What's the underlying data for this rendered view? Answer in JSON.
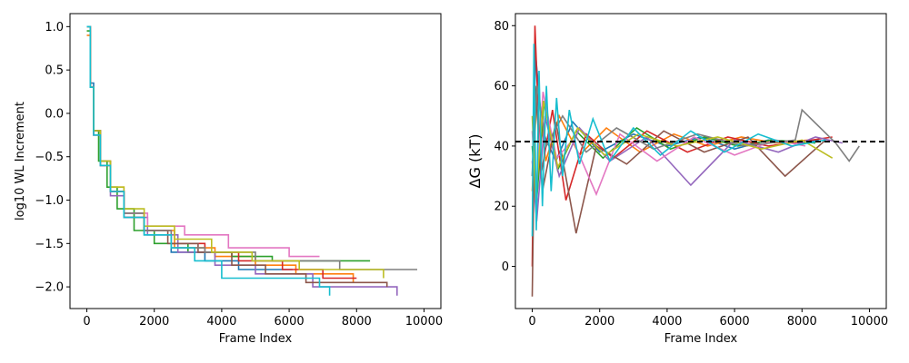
{
  "chart_data": [
    {
      "type": "line",
      "title": "",
      "xlabel": "Frame Index",
      "ylabel": "log10 WL Increment",
      "xlim": [
        -500,
        10500
      ],
      "ylim": [
        -2.25,
        1.15
      ],
      "xticks": [
        0,
        2000,
        4000,
        6000,
        8000,
        10000
      ],
      "xtick_labels": [
        "0",
        "2000",
        "4000",
        "6000",
        "8000",
        "10000"
      ],
      "yticks": [
        1.0,
        0.5,
        0.0,
        -0.5,
        -1.0,
        -1.5,
        -2.0
      ],
      "ytick_labels": [
        "1.0",
        "0.5",
        "0.0",
        "−0.5",
        "−1.0",
        "−1.5",
        "−2.0"
      ],
      "grid": false,
      "series": [
        {
          "color": "#1f77b4",
          "x": [
            0,
            100,
            200,
            400,
            700,
            1100,
            1700,
            2500,
            3500,
            4500,
            6100
          ],
          "values": [
            1.0,
            0.35,
            -0.2,
            -0.6,
            -0.9,
            -1.2,
            -1.4,
            -1.6,
            -1.7,
            -1.8,
            -1.8
          ]
        },
        {
          "color": "#ff7f0e",
          "x": [
            0,
            100,
            200,
            400,
            700,
            1100,
            1700,
            2600,
            3800,
            5000,
            6200,
            7900
          ],
          "values": [
            0.9,
            0.3,
            -0.2,
            -0.55,
            -0.85,
            -1.15,
            -1.35,
            -1.55,
            -1.65,
            -1.75,
            -1.85,
            -1.95
          ]
        },
        {
          "color": "#2ca02c",
          "x": [
            0,
            100,
            200,
            350,
            600,
            900,
            1400,
            2000,
            3000,
            4300,
            5500,
            8400
          ],
          "values": [
            0.95,
            0.3,
            -0.2,
            -0.55,
            -0.85,
            -1.1,
            -1.35,
            -1.5,
            -1.6,
            -1.65,
            -1.7,
            -1.7
          ]
        },
        {
          "color": "#d62728",
          "x": [
            0,
            100,
            200,
            400,
            700,
            1100,
            1700,
            2500,
            3500,
            4500,
            5800,
            7000,
            8000
          ],
          "values": [
            1.0,
            0.3,
            -0.25,
            -0.6,
            -0.9,
            -1.2,
            -1.35,
            -1.5,
            -1.6,
            -1.7,
            -1.8,
            -1.9,
            -1.9
          ]
        },
        {
          "color": "#9467bd",
          "x": [
            0,
            100,
            200,
            400,
            700,
            1100,
            1800,
            2700,
            3800,
            5000,
            6700,
            9200
          ],
          "values": [
            1.0,
            0.3,
            -0.25,
            -0.6,
            -0.95,
            -1.2,
            -1.4,
            -1.6,
            -1.75,
            -1.85,
            -2.0,
            -2.1
          ]
        },
        {
          "color": "#8c564b",
          "x": [
            0,
            100,
            200,
            400,
            700,
            1100,
            1700,
            2400,
            3300,
            4300,
            5300,
            6500,
            8900
          ],
          "values": [
            1.0,
            0.3,
            -0.2,
            -0.55,
            -0.9,
            -1.15,
            -1.35,
            -1.5,
            -1.6,
            -1.75,
            -1.85,
            -1.95,
            -2.0
          ]
        },
        {
          "color": "#e377c2",
          "x": [
            0,
            100,
            200,
            400,
            700,
            1100,
            1800,
            2900,
            4200,
            6000,
            6900
          ],
          "values": [
            1.0,
            0.3,
            -0.25,
            -0.6,
            -0.9,
            -1.15,
            -1.3,
            -1.4,
            -1.55,
            -1.65,
            -1.65
          ]
        },
        {
          "color": "#7f7f7f",
          "x": [
            0,
            100,
            200,
            400,
            700,
            1100,
            1700,
            2500,
            3500,
            5000,
            7500,
            9800
          ],
          "values": [
            1.0,
            0.3,
            -0.2,
            -0.6,
            -0.9,
            -1.15,
            -1.35,
            -1.55,
            -1.6,
            -1.7,
            -1.8,
            -1.8
          ]
        },
        {
          "color": "#bcbd22",
          "x": [
            0,
            100,
            200,
            400,
            700,
            1100,
            1700,
            2600,
            3700,
            4900,
            6300,
            8800
          ],
          "values": [
            1.0,
            0.3,
            -0.2,
            -0.55,
            -0.85,
            -1.1,
            -1.3,
            -1.45,
            -1.6,
            -1.7,
            -1.8,
            -1.9
          ]
        },
        {
          "color": "#17becf",
          "x": [
            0,
            100,
            200,
            400,
            700,
            1100,
            1700,
            2500,
            3200,
            4000,
            6900,
            7200
          ],
          "values": [
            1.0,
            0.3,
            -0.25,
            -0.6,
            -0.9,
            -1.2,
            -1.4,
            -1.55,
            -1.7,
            -1.9,
            -2.0,
            -2.1
          ]
        }
      ]
    },
    {
      "type": "line",
      "title": "",
      "xlabel": "Frame Index",
      "ylabel": "ΔG (kT)",
      "xlim": [
        -500,
        10500
      ],
      "ylim": [
        -14,
        84
      ],
      "xticks": [
        0,
        2000,
        4000,
        6000,
        8000,
        10000
      ],
      "xtick_labels": [
        "0",
        "2000",
        "4000",
        "6000",
        "8000",
        "10000"
      ],
      "yticks": [
        0,
        20,
        40,
        60,
        80
      ],
      "ytick_labels": [
        "0",
        "20",
        "40",
        "60",
        "80"
      ],
      "grid": false,
      "reference_line": {
        "y": 41.5,
        "style": "dashed",
        "color": "#000000"
      },
      "series": [
        {
          "color": "#1f77b4",
          "x": [
            0,
            100,
            300,
            700,
            1200,
            2000,
            3000,
            4000,
            5000,
            6000,
            7000,
            8000,
            8500
          ],
          "values": [
            30,
            70,
            45,
            35,
            48,
            38,
            44,
            40,
            43,
            39,
            42,
            41,
            42
          ]
        },
        {
          "color": "#ff7f0e",
          "x": [
            0,
            150,
            400,
            800,
            1400,
            2200,
            3200,
            4200,
            5200,
            6200,
            7200,
            8200
          ],
          "values": [
            25,
            60,
            35,
            50,
            37,
            46,
            38,
            44,
            40,
            43,
            41,
            42
          ]
        },
        {
          "color": "#2ca02c",
          "x": [
            0,
            120,
            350,
            750,
            1300,
            2100,
            3100,
            4100,
            5100,
            6100,
            7100,
            8400
          ],
          "values": [
            40,
            20,
            55,
            32,
            45,
            36,
            46,
            39,
            43,
            40,
            42,
            41
          ]
        },
        {
          "color": "#d62728",
          "x": [
            0,
            80,
            250,
            600,
            1000,
            1600,
            2400,
            3400,
            4600,
            5800,
            7000,
            8300,
            8900
          ],
          "values": [
            0,
            80,
            30,
            52,
            22,
            44,
            36,
            45,
            38,
            43,
            40,
            42,
            43
          ]
        },
        {
          "color": "#9467bd",
          "x": [
            0,
            130,
            380,
            800,
            1400,
            2300,
            3400,
            4700,
            6000,
            7300,
            8400,
            9200
          ],
          "values": [
            35,
            15,
            50,
            30,
            46,
            35,
            43,
            27,
            42,
            38,
            43,
            41
          ]
        },
        {
          "color": "#8c564b",
          "x": [
            0,
            90,
            300,
            700,
            1300,
            1900,
            2800,
            3900,
            5100,
            6400,
            7500,
            8700
          ],
          "values": [
            -10,
            60,
            25,
            48,
            11,
            40,
            34,
            45,
            38,
            43,
            30,
            42
          ]
        },
        {
          "color": "#e377c2",
          "x": [
            0,
            110,
            320,
            720,
            1200,
            1900,
            2600,
            3700,
            4800,
            6000,
            7200,
            8100
          ],
          "values": [
            45,
            25,
            58,
            36,
            42,
            24,
            44,
            35,
            43,
            37,
            42,
            40
          ]
        },
        {
          "color": "#7f7f7f",
          "x": [
            0,
            140,
            420,
            900,
            1600,
            2500,
            3600,
            4900,
            6300,
            7800,
            8000,
            9000,
            9400,
            9700
          ],
          "values": [
            30,
            60,
            40,
            50,
            38,
            46,
            39,
            44,
            40,
            42,
            52,
            41,
            35,
            40
          ]
        },
        {
          "color": "#bcbd22",
          "x": [
            0,
            100,
            330,
            760,
            1350,
            2150,
            3150,
            4300,
            5500,
            6800,
            8000,
            8900
          ],
          "values": [
            50,
            22,
            55,
            33,
            46,
            37,
            44,
            40,
            43,
            39,
            42,
            36
          ]
        },
        {
          "color": "#17becf",
          "x": [
            0,
            50,
            120,
            200,
            300,
            420,
            560,
            720,
            900,
            1100,
            1400,
            1800,
            2300,
            3000,
            3800,
            4700,
            5700,
            6700,
            7700,
            8700
          ],
          "values": [
            10,
            74,
            12,
            65,
            20,
            60,
            25,
            56,
            30,
            52,
            34,
            49,
            35,
            46,
            37,
            45,
            38,
            44,
            40,
            42
          ]
        }
      ]
    }
  ]
}
